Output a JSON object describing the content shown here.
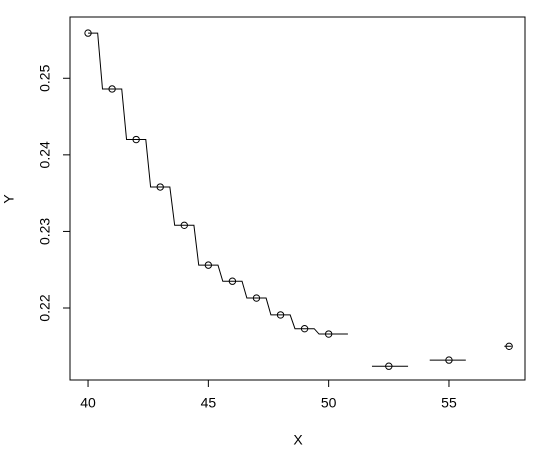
{
  "chart_data": {
    "type": "line",
    "xlabel": "X",
    "ylabel": "Y",
    "xlim": [
      39.25,
      58.16
    ],
    "ylim": [
      0.2106,
      0.258
    ],
    "xticks": [
      40,
      45,
      50,
      55
    ],
    "yticks": [
      0.22,
      0.23,
      0.24,
      0.25
    ],
    "color": "#000000",
    "series": [
      {
        "style": "points",
        "marker": "circle",
        "x": [
          40,
          41,
          42,
          43,
          44,
          45,
          46,
          47,
          48,
          49,
          50,
          52.5,
          55,
          57.5
        ],
        "values": [
          0.2559,
          0.2486,
          0.242,
          0.2358,
          0.2308,
          0.2256,
          0.2235,
          0.2213,
          0.2191,
          0.2173,
          0.2166,
          0.2124,
          0.2132,
          0.215
        ]
      },
      {
        "style": "line",
        "x": [
          40,
          40.4,
          40.6,
          41.4,
          41.6,
          42.4,
          42.6,
          43.4,
          43.6,
          44.4,
          44.6,
          45.4,
          45.6,
          46.4,
          46.6,
          47.4,
          47.6,
          48.4,
          48.6,
          49.4,
          49.6,
          50.8
        ],
        "values": [
          0.2559,
          0.2559,
          0.2486,
          0.2486,
          0.242,
          0.242,
          0.2358,
          0.2358,
          0.2308,
          0.2308,
          0.2256,
          0.2256,
          0.2235,
          0.2235,
          0.2213,
          0.2213,
          0.2191,
          0.2191,
          0.2173,
          0.2173,
          0.2166,
          0.2166
        ]
      },
      {
        "style": "line",
        "x": [
          51.8,
          53.3,
          53.75,
          54.2,
          55.7,
          56.5,
          57.3,
          57.6
        ],
        "values": [
          0.2124,
          0.2124,
          null,
          0.2132,
          0.2132,
          null,
          0.215,
          0.215
        ]
      }
    ]
  }
}
